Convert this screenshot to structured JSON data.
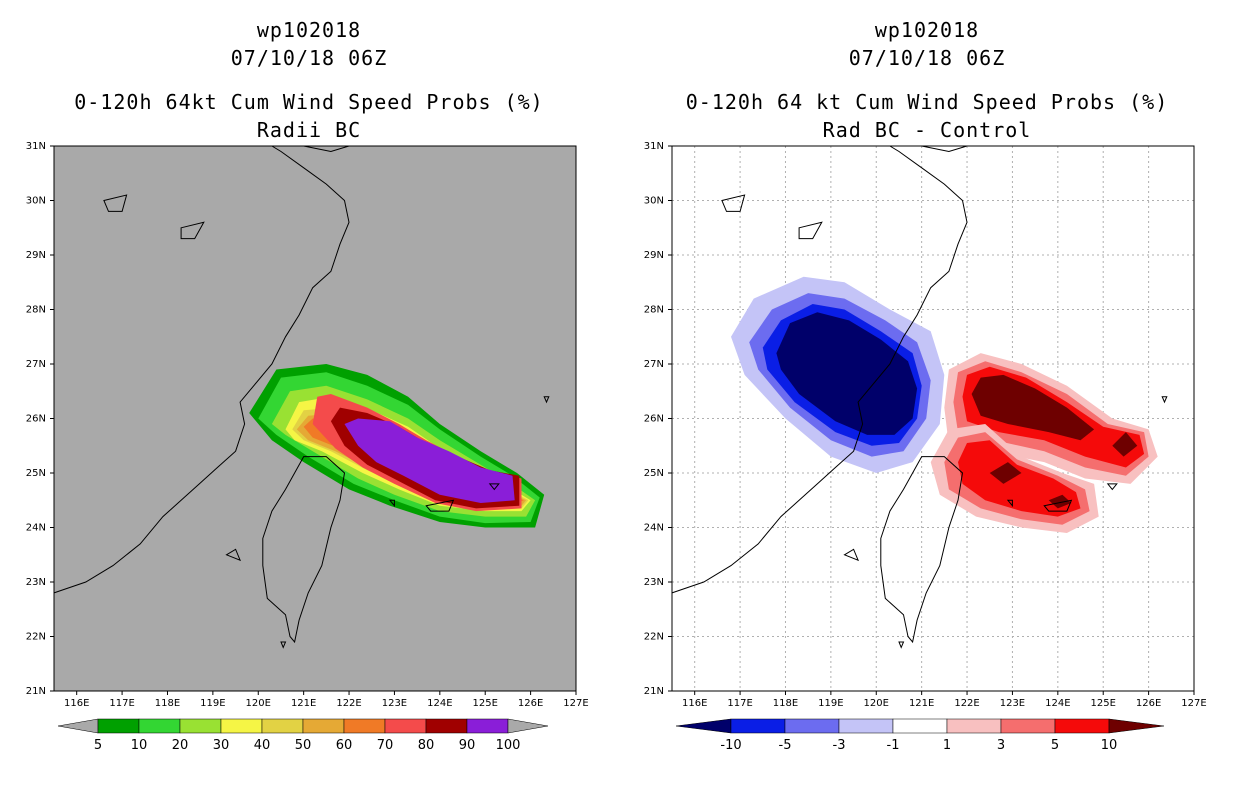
{
  "panels": [
    {
      "storm_id": "wp102018",
      "datetime": "07/10/18 06Z",
      "title": "0-120h 64kt Cum Wind Speed Probs (%)",
      "subtitle": "Radii BC",
      "background_color": "#a9a9a9",
      "lat_labels": [
        "31N",
        "30N",
        "29N",
        "28N",
        "27N",
        "26N",
        "25N",
        "24N",
        "23N",
        "22N",
        "21N"
      ],
      "lon_labels": [
        "116E",
        "117E",
        "118E",
        "119E",
        "120E",
        "121E",
        "122E",
        "123E",
        "124E",
        "125E",
        "126E",
        "127E"
      ],
      "colorbar": {
        "labels": [
          "5",
          "10",
          "20",
          "30",
          "40",
          "50",
          "60",
          "70",
          "80",
          "90",
          "100"
        ],
        "colors": [
          "#00a000",
          "#33d633",
          "#99e133",
          "#f5f545",
          "#e2d244",
          "#e5a935",
          "#f07a26",
          "#f44b4b",
          "#a00000",
          "#8a1ed8"
        ]
      }
    },
    {
      "storm_id": "wp102018",
      "datetime": "07/10/18 06Z",
      "title": "0-120h 64 kt Cum Wind Speed Probs (%)",
      "subtitle": "Rad BC - Control",
      "background_color": "#ffffff",
      "lat_labels": [
        "31N",
        "30N",
        "29N",
        "28N",
        "27N",
        "26N",
        "25N",
        "24N",
        "23N",
        "22N",
        "21N"
      ],
      "lon_labels": [
        "116E",
        "117E",
        "118E",
        "119E",
        "120E",
        "121E",
        "122E",
        "123E",
        "124E",
        "125E",
        "126E",
        "127E"
      ],
      "colorbar": {
        "labels": [
          "-10",
          "-5",
          "-3",
          "-1",
          "1",
          "3",
          "5",
          "10"
        ],
        "colors": [
          "#00006a",
          "#0a1ee6",
          "#6c6cf0",
          "#c4c4f7",
          "#ffffff",
          "#f8c0c0",
          "#f56e6e",
          "#f50a0a",
          "#6e0000"
        ]
      }
    }
  ]
}
